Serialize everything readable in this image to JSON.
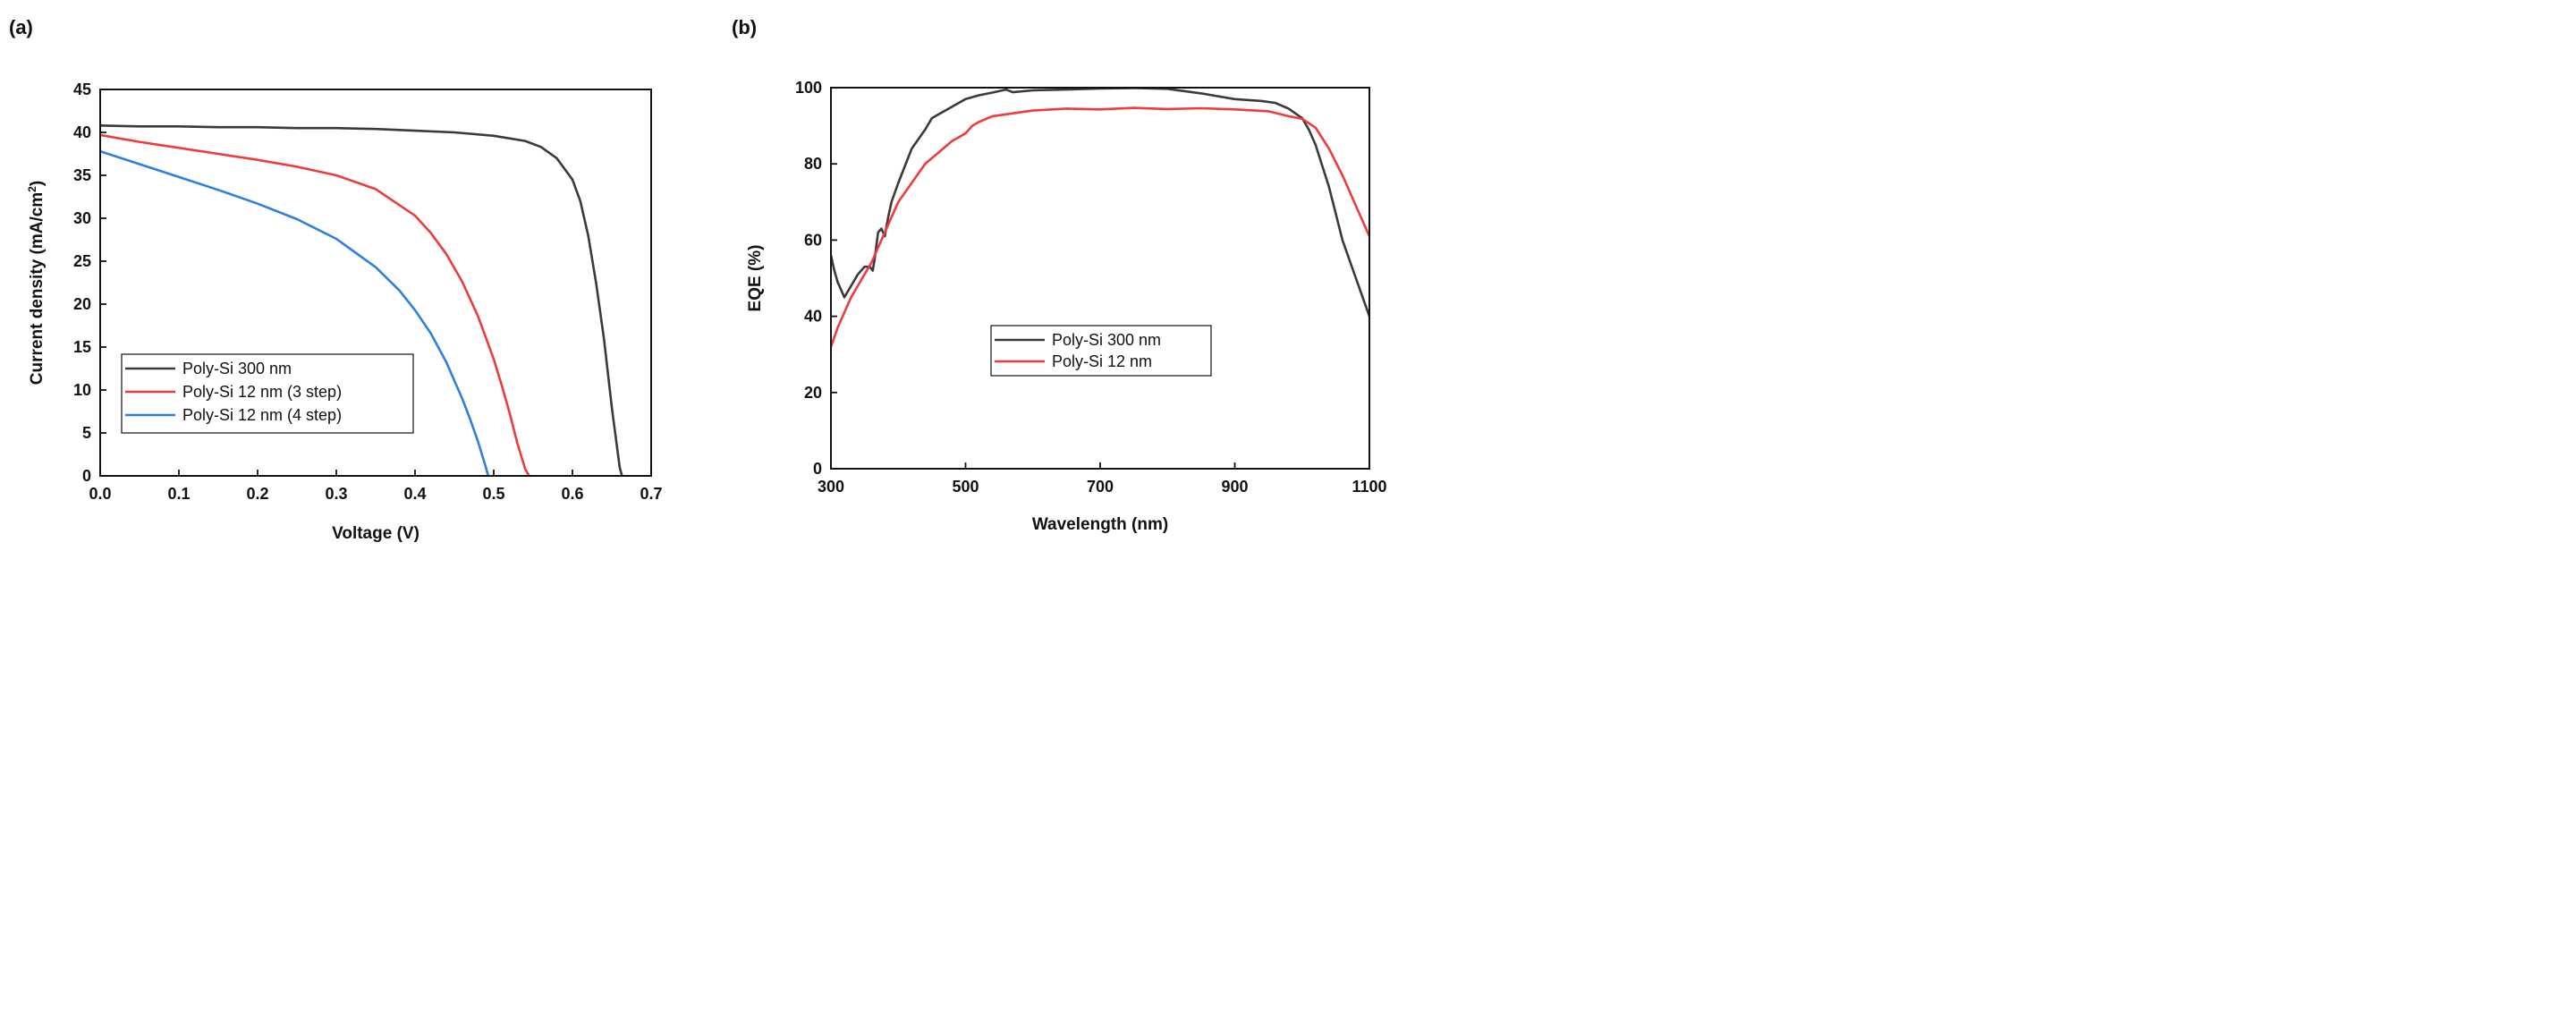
{
  "chart_data": [
    {
      "panel_label": "(a)",
      "type": "line",
      "title": "",
      "xlabel": "Voltage (V)",
      "ylabel_main": "Current density (mA/cm",
      "ylabel_sup": "2",
      "ylabel_close": ")",
      "xlim": [
        0.0,
        0.7
      ],
      "ylim": [
        0,
        45
      ],
      "xticks": [
        "0.0",
        "0.1",
        "0.2",
        "0.3",
        "0.4",
        "0.5",
        "0.6",
        "0.7"
      ],
      "yticks": [
        "0",
        "5",
        "10",
        "15",
        "20",
        "25",
        "30",
        "35",
        "40",
        "45"
      ],
      "grid": false,
      "legend_position": "bottom-left",
      "series": [
        {
          "name": "Poly-Si 300 nm",
          "color": "#3a3a3a",
          "x": [
            0.0,
            0.05,
            0.1,
            0.15,
            0.2,
            0.25,
            0.3,
            0.35,
            0.4,
            0.45,
            0.5,
            0.52,
            0.54,
            0.56,
            0.58,
            0.6,
            0.61,
            0.62,
            0.63,
            0.64,
            0.645,
            0.65,
            0.655,
            0.66,
            0.663
          ],
          "y": [
            40.8,
            40.7,
            40.7,
            40.6,
            40.6,
            40.5,
            40.5,
            40.4,
            40.2,
            40.0,
            39.6,
            39.3,
            39.0,
            38.3,
            37.0,
            34.5,
            32.0,
            28.0,
            22.5,
            16.0,
            12.0,
            8.0,
            4.5,
            1.0,
            0.0
          ]
        },
        {
          "name": "Poly-Si 12 nm (3 step)",
          "color": "#ee3b3b",
          "x": [
            0.0,
            0.05,
            0.1,
            0.15,
            0.2,
            0.25,
            0.3,
            0.35,
            0.4,
            0.42,
            0.44,
            0.46,
            0.48,
            0.5,
            0.51,
            0.52,
            0.53,
            0.54,
            0.545
          ],
          "y": [
            39.7,
            38.9,
            38.2,
            37.5,
            36.8,
            36.0,
            35.0,
            33.4,
            30.3,
            28.3,
            25.8,
            22.6,
            18.6,
            13.6,
            10.6,
            7.4,
            3.8,
            0.8,
            0.0
          ]
        },
        {
          "name": "Poly-Si 12 nm (4 step)",
          "color": "#2f7fe0",
          "x": [
            0.0,
            0.05,
            0.1,
            0.15,
            0.2,
            0.25,
            0.3,
            0.35,
            0.38,
            0.4,
            0.42,
            0.44,
            0.46,
            0.47,
            0.48,
            0.49,
            0.493
          ],
          "y": [
            37.8,
            36.3,
            34.8,
            33.3,
            31.7,
            29.9,
            27.6,
            24.3,
            21.6,
            19.3,
            16.6,
            13.2,
            9.0,
            6.6,
            4.0,
            1.0,
            0.0
          ]
        }
      ]
    },
    {
      "panel_label": "(b)",
      "type": "line",
      "title": "",
      "xlabel": "Wavelength (nm)",
      "ylabel": "EQE (%)",
      "xlim": [
        300,
        1100
      ],
      "ylim": [
        0,
        100
      ],
      "xticks": [
        "300",
        "500",
        "700",
        "900",
        "1100"
      ],
      "yticks": [
        "0",
        "20",
        "40",
        "60",
        "80",
        "100"
      ],
      "grid": false,
      "legend_position": "center",
      "series": [
        {
          "name": "Poly-Si 300 nm",
          "color": "#3a3a3a",
          "x": [
            300,
            305,
            310,
            320,
            330,
            340,
            350,
            358,
            362,
            365,
            370,
            375,
            380,
            385,
            390,
            400,
            420,
            440,
            450,
            460,
            480,
            500,
            520,
            540,
            560,
            570,
            600,
            650,
            700,
            750,
            800,
            850,
            900,
            940,
            960,
            980,
            1000,
            1010,
            1020,
            1040,
            1060,
            1080,
            1100
          ],
          "y": [
            56,
            52,
            49,
            45,
            48,
            51,
            53,
            53,
            52,
            55,
            62,
            63,
            61,
            66,
            70,
            75,
            84,
            89,
            92,
            93,
            95,
            97,
            98,
            98.7,
            99.5,
            98.8,
            99.3,
            99.5,
            99.8,
            99.9,
            99.7,
            98.5,
            97,
            96.5,
            96,
            94.5,
            92,
            89,
            85,
            74,
            60,
            50,
            40
          ]
        },
        {
          "name": "Poly-Si 12 nm",
          "color": "#ee3b3b",
          "x": [
            300,
            310,
            320,
            330,
            340,
            350,
            360,
            370,
            380,
            390,
            400,
            420,
            440,
            460,
            480,
            500,
            510,
            520,
            540,
            560,
            600,
            650,
            700,
            750,
            800,
            850,
            900,
            950,
            980,
            1000,
            1020,
            1040,
            1060,
            1080,
            1100
          ],
          "y": [
            32,
            37,
            41,
            45,
            48,
            51,
            54,
            58,
            62,
            66,
            70,
            75,
            80,
            83,
            86,
            88,
            90,
            91,
            92.5,
            93,
            94,
            94.5,
            94.3,
            94.7,
            94.4,
            94.6,
            94.3,
            93.8,
            92.5,
            91.8,
            89.5,
            84,
            77,
            69,
            61
          ]
        }
      ]
    }
  ]
}
